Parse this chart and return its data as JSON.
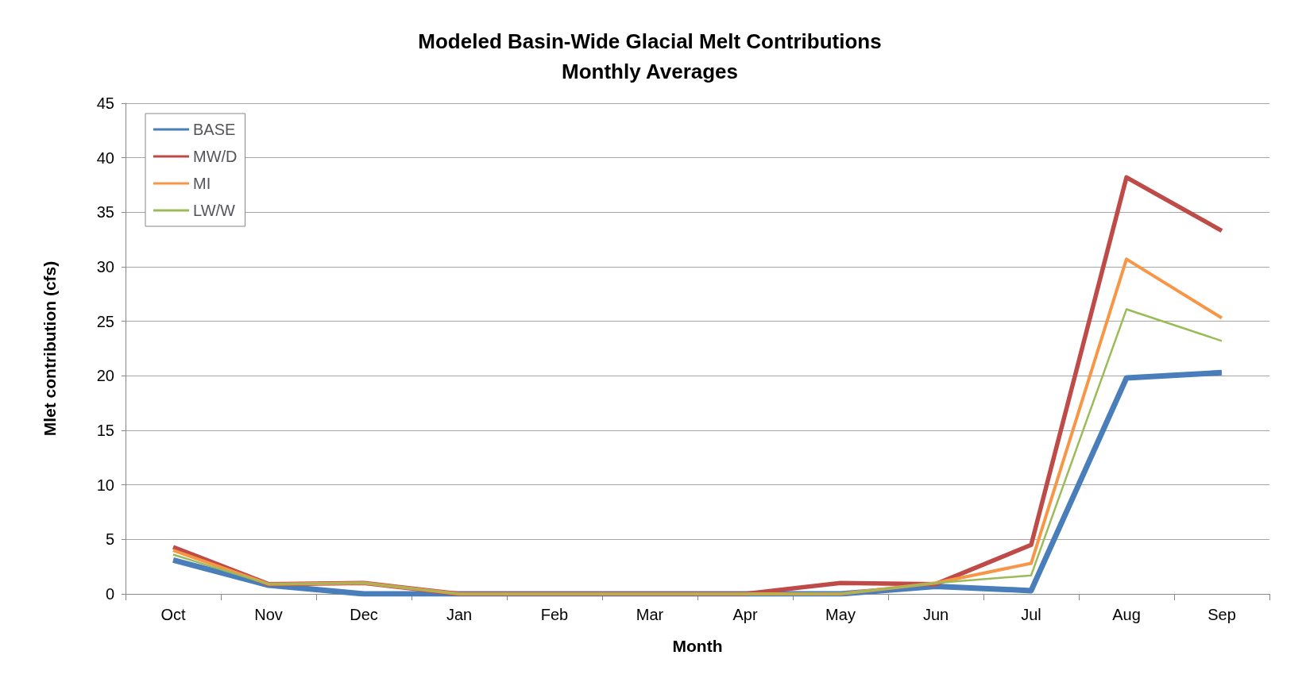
{
  "chart_data": {
    "type": "line",
    "title": "Modeled Basin-Wide Glacial Melt Contributions\nMonthly Averages",
    "xlabel": "Month",
    "ylabel": "Mlet contribution (cfs)",
    "categories": [
      "Oct",
      "Nov",
      "Dec",
      "Jan",
      "Feb",
      "Mar",
      "Apr",
      "May",
      "Jun",
      "Jul",
      "Aug",
      "Sep"
    ],
    "series": [
      {
        "name": "BASE",
        "color": "#4a7ebb",
        "values": [
          3.1,
          0.8,
          0,
          0,
          0,
          0,
          0,
          0,
          0.7,
          0.3,
          19.8,
          20.3
        ]
      },
      {
        "name": "MW/D",
        "color": "#be4b48",
        "values": [
          4.3,
          0.9,
          1.0,
          0,
          0,
          0,
          0,
          1.0,
          0.9,
          4.5,
          38.2,
          33.3
        ]
      },
      {
        "name": "MI",
        "color": "#f79646",
        "values": [
          4.0,
          0.9,
          1.0,
          0,
          0,
          0,
          0,
          0,
          1.0,
          2.8,
          30.7,
          25.3
        ]
      },
      {
        "name": "LW/W",
        "color": "#9bbb59",
        "values": [
          3.6,
          0.9,
          1.0,
          0,
          0,
          0,
          0,
          0,
          1.0,
          1.7,
          26.1,
          23.2
        ]
      }
    ],
    "ylim": [
      0,
      45
    ],
    "yticks": [
      0,
      5,
      10,
      15,
      20,
      25,
      30,
      35,
      40,
      45
    ],
    "grid": "y",
    "legend": "top left",
    "marker": "none",
    "line_style": "solid"
  }
}
